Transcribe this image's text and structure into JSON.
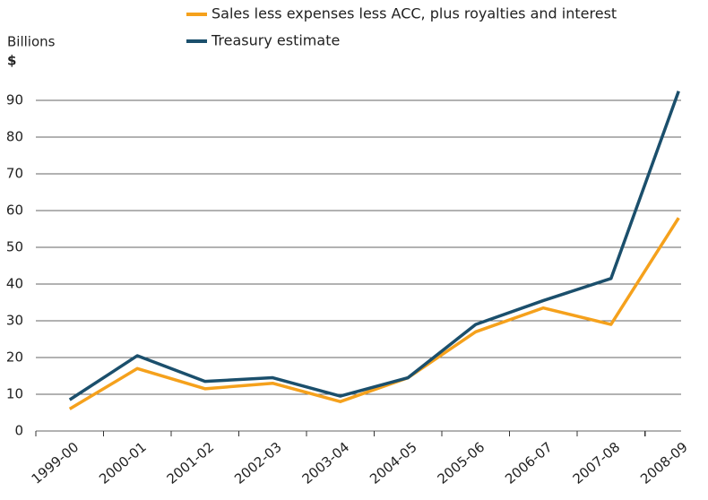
{
  "chart_data": {
    "type": "line",
    "y_label": "Billions",
    "y_unit": "$",
    "categories": [
      "1999-00",
      "2000-01",
      "2001-02",
      "2002-03",
      "2003-04",
      "2004-05",
      "2005-06",
      "2006-07",
      "2007-08",
      "2008-09"
    ],
    "series": [
      {
        "name": "Sales less expenses less ACC, plus royalties and interest",
        "color": "#f5a11c",
        "values": [
          6,
          17,
          11.5,
          13,
          8,
          14.5,
          27,
          33.5,
          29,
          58
        ]
      },
      {
        "name": "Treasury estimate",
        "color": "#1b4f6c",
        "values": [
          8.5,
          20.5,
          13.5,
          14.5,
          9.5,
          14.5,
          29,
          35.5,
          41.5,
          92.5
        ]
      }
    ],
    "ylim": [
      0,
      95
    ],
    "yticks": [
      0,
      10,
      20,
      30,
      40,
      50,
      60,
      70,
      80,
      90
    ],
    "grid": true
  }
}
